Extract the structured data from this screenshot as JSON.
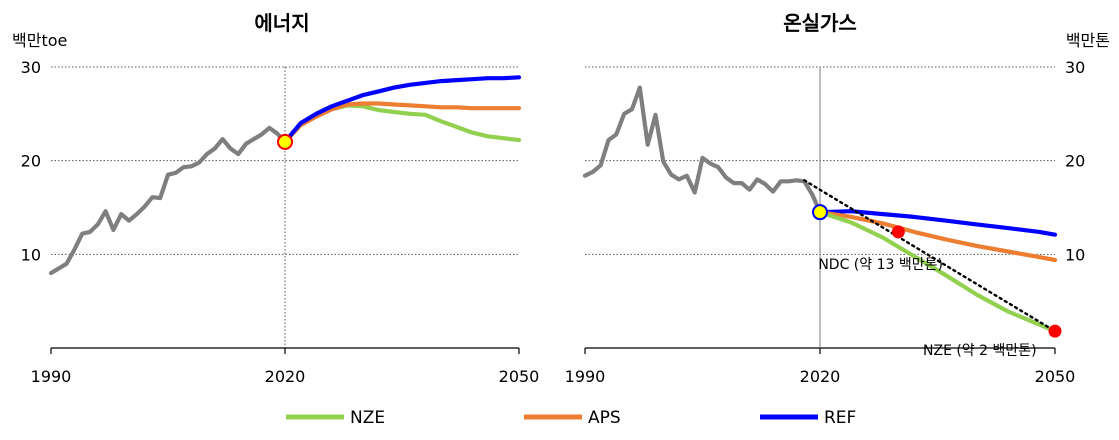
{
  "chart_data": [
    {
      "type": "line",
      "title": "에너지",
      "ylabel": "백만toe",
      "xlim": [
        1990,
        2050
      ],
      "ylim": [
        0,
        30
      ],
      "xticks": [
        "1990",
        "2020",
        "2050"
      ],
      "yticks": [
        "10",
        "20",
        "30"
      ],
      "grid": "horizontal dotted",
      "vline_year": 2020,
      "base_year": 2020,
      "base_value": 22.0,
      "series": [
        {
          "key": "history",
          "color": "#7f7f7f",
          "x": [
            1990,
            1991,
            1992,
            1993,
            1994,
            1995,
            1996,
            1997,
            1998,
            1999,
            2000,
            2001,
            2002,
            2003,
            2004,
            2005,
            2006,
            2007,
            2008,
            2009,
            2010,
            2011,
            2012,
            2013,
            2014,
            2015,
            2016,
            2017,
            2018,
            2019,
            2020
          ],
          "y": [
            8.0,
            8.5,
            9.0,
            10.5,
            12.2,
            12.4,
            13.2,
            14.6,
            12.6,
            14.3,
            13.6,
            14.3,
            15.1,
            16.1,
            16.0,
            18.5,
            18.7,
            19.3,
            19.4,
            19.8,
            20.7,
            21.3,
            22.3,
            21.3,
            20.7,
            21.8,
            22.3,
            22.8,
            23.5,
            22.9,
            22.0
          ]
        },
        {
          "name": "NZE",
          "key": "nze",
          "color": "#92d050",
          "x": [
            2020,
            2022,
            2024,
            2026,
            2028,
            2030,
            2032,
            2034,
            2036,
            2038,
            2040,
            2042,
            2044,
            2046,
            2048,
            2050
          ],
          "y": [
            22.0,
            23.8,
            24.8,
            25.5,
            25.9,
            25.8,
            25.4,
            25.2,
            25.0,
            24.9,
            24.2,
            23.6,
            23.0,
            22.6,
            22.4,
            22.2
          ]
        },
        {
          "name": "APS",
          "key": "aps",
          "color": "#ed7d31",
          "x": [
            2020,
            2022,
            2024,
            2026,
            2028,
            2030,
            2032,
            2034,
            2036,
            2038,
            2040,
            2042,
            2044,
            2046,
            2048,
            2050
          ],
          "y": [
            22.0,
            23.8,
            24.7,
            25.5,
            26.0,
            26.1,
            26.1,
            26.0,
            25.9,
            25.8,
            25.7,
            25.7,
            25.6,
            25.6,
            25.6,
            25.6
          ]
        },
        {
          "name": "REF",
          "key": "ref",
          "color": "#0000ff",
          "x": [
            2020,
            2022,
            2024,
            2026,
            2028,
            2030,
            2032,
            2034,
            2036,
            2038,
            2040,
            2042,
            2044,
            2046,
            2048,
            2050
          ],
          "y": [
            22.0,
            24.0,
            25.0,
            25.8,
            26.4,
            27.0,
            27.4,
            27.8,
            28.1,
            28.3,
            28.5,
            28.6,
            28.7,
            28.8,
            28.8,
            28.9
          ]
        }
      ]
    },
    {
      "type": "line",
      "title": "온실가스",
      "ylabel": "백만톤",
      "xlim": [
        1990,
        2050
      ],
      "ylim": [
        0,
        30
      ],
      "xticks": [
        "1990",
        "2020",
        "2050"
      ],
      "yticks": [
        "10",
        "20",
        "30"
      ],
      "grid": "horizontal dotted",
      "vline_year": 2020,
      "base_year": 2020,
      "base_value": 14.5,
      "series": [
        {
          "key": "history",
          "color": "#7f7f7f",
          "x": [
            1990,
            1991,
            1992,
            1993,
            1994,
            1995,
            1996,
            1997,
            1998,
            1999,
            2000,
            2001,
            2002,
            2003,
            2004,
            2005,
            2006,
            2007,
            2008,
            2009,
            2010,
            2011,
            2012,
            2013,
            2014,
            2015,
            2016,
            2017,
            2018,
            2019,
            2020
          ],
          "y": [
            18.4,
            18.8,
            19.5,
            22.2,
            22.8,
            25.0,
            25.5,
            27.8,
            21.7,
            24.9,
            19.9,
            18.5,
            18.0,
            18.4,
            16.6,
            20.3,
            19.7,
            19.3,
            18.2,
            17.6,
            17.6,
            16.9,
            18.0,
            17.5,
            16.7,
            17.8,
            17.8,
            17.9,
            17.8,
            16.4,
            14.5
          ]
        },
        {
          "name": "NZE",
          "key": "nze",
          "color": "#92d050",
          "x": [
            2020,
            2024,
            2028,
            2032,
            2036,
            2040,
            2044,
            2048,
            2050
          ],
          "y": [
            14.5,
            13.4,
            11.8,
            9.8,
            7.8,
            5.7,
            3.9,
            2.5,
            1.8
          ]
        },
        {
          "name": "APS",
          "key": "aps",
          "color": "#ed7d31",
          "x": [
            2020,
            2024,
            2028,
            2032,
            2036,
            2040,
            2044,
            2048,
            2050
          ],
          "y": [
            14.5,
            14.0,
            13.3,
            12.4,
            11.6,
            10.9,
            10.3,
            9.7,
            9.4
          ]
        },
        {
          "name": "REF",
          "key": "ref",
          "color": "#0000ff",
          "x": [
            2020,
            2024,
            2028,
            2032,
            2036,
            2040,
            2044,
            2048,
            2050
          ],
          "y": [
            14.5,
            14.6,
            14.3,
            14.0,
            13.6,
            13.2,
            12.8,
            12.4,
            12.1
          ]
        }
      ],
      "target_line": {
        "x": [
          2018,
          2050
        ],
        "y": [
          17.9,
          1.8
        ],
        "style": "dotted",
        "color": "#000000"
      },
      "targets": [
        {
          "x": 2030,
          "y": 12.4,
          "label": "NDC (약 13 백만톤)"
        },
        {
          "x": 2050,
          "y": 1.8,
          "label": "NZE (약 2 백만톤)"
        }
      ]
    }
  ],
  "legend": [
    {
      "label": "NZE",
      "color": "#92d050"
    },
    {
      "label": "APS",
      "color": "#ed7d31"
    },
    {
      "label": "REF",
      "color": "#0000ff"
    }
  ]
}
